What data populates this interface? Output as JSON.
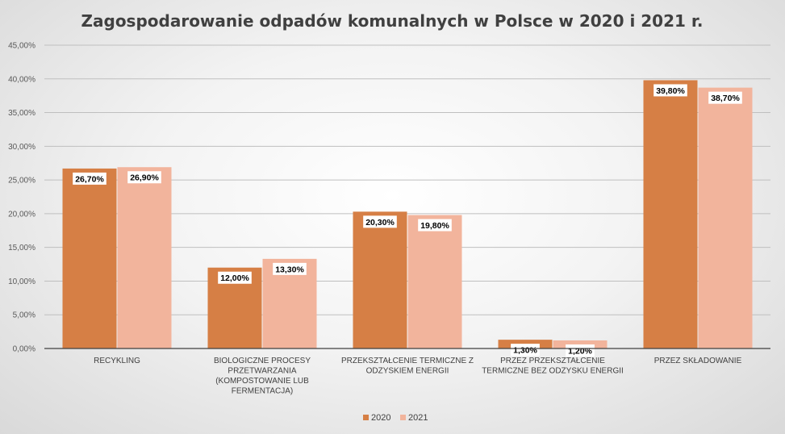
{
  "chart_data": {
    "type": "bar",
    "title": "Zagospodarowanie odpadów komunalnych w Polsce w 2020 i 2021 r.",
    "xlabel": "",
    "ylabel": "",
    "ylim": [
      0,
      45
    ],
    "yticks": [
      "0,00%",
      "5,00%",
      "10,00%",
      "15,00%",
      "20,00%",
      "25,00%",
      "30,00%",
      "35,00%",
      "40,00%",
      "45,00%"
    ],
    "categories": [
      [
        "RECYKLING"
      ],
      [
        "BIOLOGICZNE PROCESY",
        "PRZETWARZANIA",
        "(KOMPOSTOWANIE LUB",
        "FERMENTACJA)"
      ],
      [
        "PRZEKSZTAŁCENIE TERMICZNE Z",
        "ODZYSKIEM ENERGII"
      ],
      [
        "PRZEZ PRZEKSZTAŁCENIE",
        "TERMICZNE BEZ ODZYSKU ENERGII"
      ],
      [
        "PRZEZ SKŁADOWANIE"
      ]
    ],
    "series": [
      {
        "name": "2020",
        "color": "#d67f45",
        "values": [
          26.7,
          12.0,
          20.3,
          1.3,
          39.8
        ],
        "labels": [
          "26,70%",
          "12,00%",
          "20,30%",
          "1,30%",
          "39,80%"
        ]
      },
      {
        "name": "2021",
        "color": "#f2b49c",
        "values": [
          26.9,
          13.3,
          19.8,
          1.2,
          38.7
        ],
        "labels": [
          "26,90%",
          "13,30%",
          "19,80%",
          "1,20%",
          "38,70%"
        ]
      }
    ],
    "grid": true,
    "legend": "bottom"
  }
}
